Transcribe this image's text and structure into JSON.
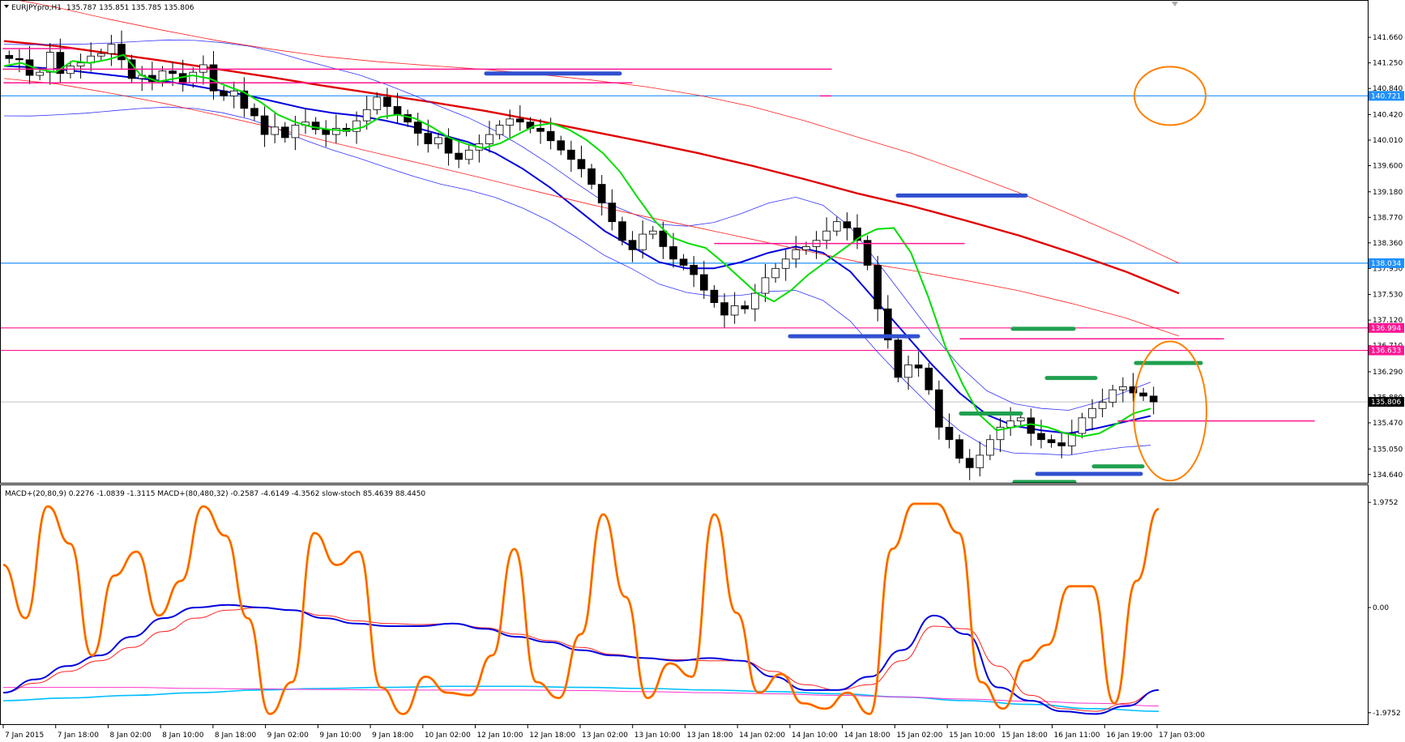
{
  "chart_data": {
    "type": "candlestick",
    "symbol_header": "EURJPYpro,H1",
    "ohlc_header": "135.787 135.851 135.785 135.806",
    "indicator_header": "MACD+(20,80,9) 0.2276 -1.0839 -1.3115  MACD+(80,480,32) -0.2587 -4.6149 -4.3562  slow-stoch 85.4639 88.4450",
    "price_axis": {
      "ylim": [
        134.52,
        142.0
      ],
      "ticks": [
        "141.660",
        "141.250",
        "140.840",
        "140.420",
        "140.010",
        "139.600",
        "139.180",
        "138.770",
        "138.360",
        "137.950",
        "137.530",
        "137.120",
        "136.710",
        "136.290",
        "135.880",
        "135.470",
        "135.050",
        "134.640"
      ]
    },
    "indicator_axis": {
      "ylim": [
        -2.1,
        2.1
      ],
      "ticks": [
        "1.9752",
        "0.00",
        "-1.9752"
      ]
    },
    "x_ticks": [
      "7 Jan 2015",
      "7 Jan 18:00",
      "8 Jan 02:00",
      "8 Jan 10:00",
      "8 Jan 18:00",
      "9 Jan 02:00",
      "9 Jan 10:00",
      "9 Jan 18:00",
      "10 Jan 02:00",
      "12 Jan 10:00",
      "12 Jan 18:00",
      "13 Jan 02:00",
      "13 Jan 10:00",
      "13 Jan 18:00",
      "14 Jan 02:00",
      "14 Jan 10:00",
      "14 Jan 18:00",
      "15 Jan 02:00",
      "15 Jan 10:00",
      "15 Jan 18:00",
      "16 Jan 11:00",
      "16 Jan 19:00",
      "17 Jan 03:00"
    ],
    "current_price": "135.806",
    "price_labels": [
      {
        "text": "140.721",
        "value": 140.721,
        "color": "#1e90ff"
      },
      {
        "text": "138.034",
        "value": 138.034,
        "color": "#1e90ff"
      },
      {
        "text": "136.994",
        "value": 136.994,
        "color": "#ff1493"
      },
      {
        "text": "136.633",
        "value": 136.633,
        "color": "#ff1493"
      }
    ],
    "series": [
      {
        "name": "close",
        "values": [
          141.32,
          141.3,
          141.05,
          141.1,
          141.42,
          141.08,
          141.2,
          141.25,
          141.36,
          141.4,
          141.55,
          141.3,
          141.0,
          141.05,
          140.95,
          141.12,
          141.08,
          140.93,
          141.1,
          141.22,
          140.8,
          140.72,
          140.8,
          140.52,
          140.4,
          140.1,
          140.22,
          140.05,
          140.25,
          140.3,
          140.18,
          140.1,
          140.2,
          140.15,
          140.32,
          140.5,
          140.7,
          140.55,
          140.42,
          140.3,
          140.12,
          139.95,
          140.05,
          139.8,
          139.7,
          139.85,
          139.95,
          140.1,
          140.25,
          140.35,
          140.3,
          140.2,
          140.15,
          140.0,
          139.85,
          139.7,
          139.55,
          139.3,
          139.0,
          138.7,
          138.4,
          138.25,
          138.5,
          138.55,
          138.3,
          138.1,
          138.0,
          137.85,
          137.6,
          137.4,
          137.2,
          137.35,
          137.3,
          137.55,
          137.8,
          137.95,
          138.1,
          138.25,
          138.3,
          138.4,
          138.55,
          138.7,
          138.6,
          138.4,
          138.0,
          137.3,
          136.8,
          136.2,
          136.4,
          136.35,
          136.0,
          135.4,
          135.2,
          134.9,
          134.75,
          134.95,
          135.2,
          135.4,
          135.5,
          135.55,
          135.3,
          135.2,
          135.15,
          135.1,
          135.3,
          135.55,
          135.7,
          135.8,
          136.0,
          136.05,
          135.95,
          135.9,
          135.806
        ]
      },
      {
        "name": "ma_red_long",
        "values": [
          141.6,
          141.52,
          141.4,
          141.28,
          141.15,
          141.02,
          140.88,
          140.75,
          140.62,
          140.48,
          140.32,
          140.15,
          139.98,
          139.8,
          139.6,
          139.38,
          139.15,
          138.95,
          138.72,
          138.48,
          138.2,
          137.9,
          137.55
        ]
      },
      {
        "name": "ma_blue",
        "values": [
          141.2,
          141.18,
          141.15,
          141.1,
          141.05,
          141.0,
          140.95,
          140.88,
          140.8,
          140.72,
          140.62,
          140.52,
          140.45,
          140.4,
          140.32,
          140.22,
          140.1,
          139.98,
          139.8,
          139.55,
          139.25,
          138.9,
          138.55,
          138.3,
          138.05,
          137.95,
          137.95,
          138.05,
          138.2,
          138.3,
          138.2,
          137.9,
          137.4,
          136.9,
          136.4,
          135.95,
          135.6,
          135.42,
          135.35,
          135.3,
          135.38,
          135.48,
          135.58
        ]
      },
      {
        "name": "ma_green",
        "values": [
          141.2,
          141.25,
          141.15,
          141.1,
          141.28,
          141.25,
          141.3,
          141.38,
          141.05,
          140.95,
          141.0,
          141.05,
          141.0,
          140.88,
          140.78,
          140.62,
          140.42,
          140.3,
          140.22,
          140.18,
          140.16,
          140.22,
          140.38,
          140.42,
          140.36,
          140.22,
          140.05,
          139.95,
          139.88,
          139.96,
          140.1,
          140.24,
          140.28,
          140.18,
          140.02,
          139.8,
          139.5,
          139.1,
          138.72,
          138.45,
          138.35,
          138.28,
          138.05,
          137.8,
          137.55,
          137.42,
          137.6,
          137.85,
          138.05,
          138.25,
          138.45,
          138.58,
          138.6,
          138.2,
          137.5,
          136.7,
          136.1,
          135.6,
          135.35,
          135.4,
          135.45,
          135.4,
          135.3,
          135.25,
          135.3,
          135.45,
          135.62,
          135.7
        ]
      }
    ],
    "indicator_series": [
      {
        "name": "stoch_main",
        "values": [
          0.8,
          -0.2,
          1.9,
          1.2,
          -0.9,
          0.6,
          1.05,
          -0.15,
          0.5,
          1.9,
          1.35,
          -0.2,
          -2.0,
          -1.4,
          1.4,
          0.8,
          1.05,
          -1.5,
          -2.0,
          -1.3,
          -1.6,
          -1.65,
          -0.9,
          1.1,
          -1.4,
          -1.7,
          -0.5,
          1.75,
          0.2,
          -1.7,
          -1.05,
          -1.3,
          1.75,
          -0.1,
          -1.6,
          -1.25,
          -1.8,
          -1.9,
          -1.6,
          -2.0,
          1.1,
          1.95,
          1.95,
          1.4,
          -1.4,
          -1.9,
          -1.0,
          -0.7,
          0.4,
          0.4,
          -1.8,
          0.5,
          1.85
        ]
      },
      {
        "name": "macd_fast",
        "values": [
          -1.6,
          -1.35,
          -1.1,
          -0.9,
          -0.55,
          -0.2,
          0.0,
          0.05,
          0.0,
          -0.05,
          -0.2,
          -0.3,
          -0.35,
          -0.35,
          -0.3,
          -0.4,
          -0.55,
          -0.65,
          -0.8,
          -0.9,
          -0.95,
          -1.0,
          -0.95,
          -1.0,
          -1.3,
          -1.55,
          -1.55,
          -1.3,
          -0.8,
          -0.15,
          -0.5,
          -1.5,
          -1.75,
          -1.95,
          -2.0,
          -1.85,
          -1.55
        ]
      },
      {
        "name": "macd_signal",
        "values": [
          -1.6,
          -1.42,
          -1.2,
          -1.0,
          -0.75,
          -0.45,
          -0.2,
          -0.05,
          0.0,
          -0.05,
          -0.15,
          -0.25,
          -0.3,
          -0.32,
          -0.3,
          -0.38,
          -0.5,
          -0.62,
          -0.75,
          -0.88,
          -0.95,
          -0.98,
          -1.0,
          -1.0,
          -1.2,
          -1.45,
          -1.55,
          -1.45,
          -1.0,
          -0.35,
          -0.4,
          -1.1,
          -1.65,
          -1.9,
          -1.95,
          -1.8,
          -1.55
        ]
      },
      {
        "name": "macd_slow_cyan",
        "values": [
          -1.75,
          -1.7,
          -1.65,
          -1.6,
          -1.55,
          -1.52,
          -1.5,
          -1.48,
          -1.48,
          -1.5,
          -1.52,
          -1.55,
          -1.58,
          -1.62,
          -1.68,
          -1.75,
          -1.82,
          -1.9,
          -1.95
        ]
      },
      {
        "name": "signal_slow_magenta",
        "values": [
          -1.5,
          -1.5,
          -1.5,
          -1.52,
          -1.53,
          -1.54,
          -1.55,
          -1.55,
          -1.55,
          -1.56,
          -1.58,
          -1.6,
          -1.62,
          -1.65,
          -1.68,
          -1.72,
          -1.76,
          -1.8,
          -1.85
        ]
      }
    ]
  }
}
